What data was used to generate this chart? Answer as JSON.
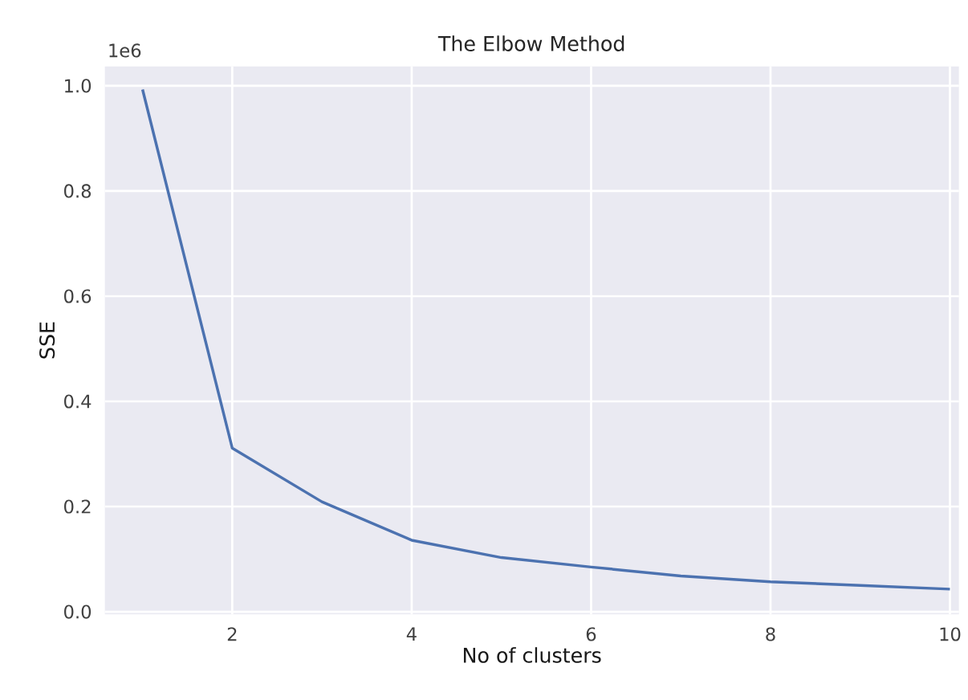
{
  "chart_data": {
    "type": "line",
    "title": "The Elbow Method",
    "xlabel": "No of clusters",
    "ylabel": "SSE",
    "x": [
      1,
      2,
      3,
      4,
      5,
      6,
      7,
      8,
      9,
      10
    ],
    "series": [
      {
        "color": "#4c72b0",
        "values": [
          0.993,
          0.311,
          0.209,
          0.136,
          0.103,
          0.085,
          0.068,
          0.057,
          0.05,
          0.043
        ]
      }
    ],
    "xlim": [
      0.58,
      10.1
    ],
    "ylim": [
      -0.005,
      1.037
    ],
    "xticks": [
      2,
      4,
      6,
      8,
      10
    ],
    "yticks": [
      {
        "value": 0,
        "label": "0.0"
      },
      0.2,
      0.4,
      0.6,
      0.8,
      {
        "value": 1,
        "label": "1.0"
      }
    ],
    "grid": true,
    "marker": "none",
    "line_style": "solid",
    "annotations": [
      "1e6"
    ]
  }
}
